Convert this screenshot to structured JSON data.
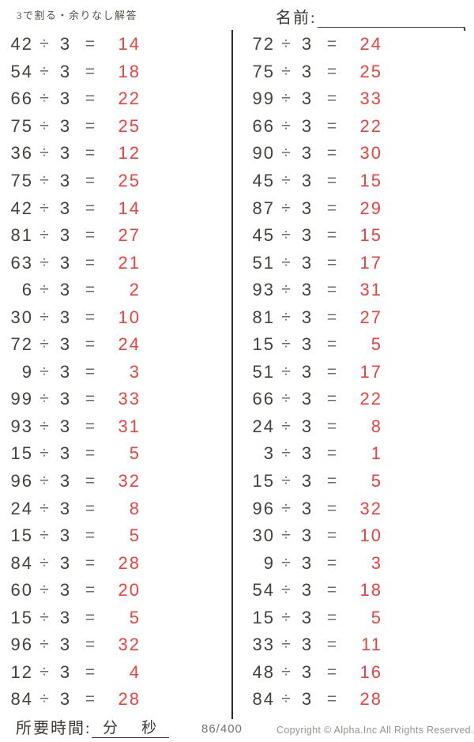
{
  "header": {
    "title": "3で割る・余りなし解答",
    "name_label": "名前:"
  },
  "op_symbol": "÷",
  "eq_symbol": "=",
  "divisor": "3",
  "problems": {
    "left": [
      {
        "dividend": "42",
        "answer": "14"
      },
      {
        "dividend": "54",
        "answer": "18"
      },
      {
        "dividend": "66",
        "answer": "22"
      },
      {
        "dividend": "75",
        "answer": "25"
      },
      {
        "dividend": "36",
        "answer": "12"
      },
      {
        "dividend": "75",
        "answer": "25"
      },
      {
        "dividend": "42",
        "answer": "14"
      },
      {
        "dividend": "81",
        "answer": "27"
      },
      {
        "dividend": "63",
        "answer": "21"
      },
      {
        "dividend": "6",
        "answer": "2"
      },
      {
        "dividend": "30",
        "answer": "10"
      },
      {
        "dividend": "72",
        "answer": "24"
      },
      {
        "dividend": "9",
        "answer": "3"
      },
      {
        "dividend": "99",
        "answer": "33"
      },
      {
        "dividend": "93",
        "answer": "31"
      },
      {
        "dividend": "15",
        "answer": "5"
      },
      {
        "dividend": "96",
        "answer": "32"
      },
      {
        "dividend": "24",
        "answer": "8"
      },
      {
        "dividend": "15",
        "answer": "5"
      },
      {
        "dividend": "84",
        "answer": "28"
      },
      {
        "dividend": "60",
        "answer": "20"
      },
      {
        "dividend": "15",
        "answer": "5"
      },
      {
        "dividend": "96",
        "answer": "32"
      },
      {
        "dividend": "12",
        "answer": "4"
      },
      {
        "dividend": "84",
        "answer": "28"
      }
    ],
    "right": [
      {
        "dividend": "72",
        "answer": "24"
      },
      {
        "dividend": "75",
        "answer": "25"
      },
      {
        "dividend": "99",
        "answer": "33"
      },
      {
        "dividend": "66",
        "answer": "22"
      },
      {
        "dividend": "90",
        "answer": "30"
      },
      {
        "dividend": "45",
        "answer": "15"
      },
      {
        "dividend": "87",
        "answer": "29"
      },
      {
        "dividend": "45",
        "answer": "15"
      },
      {
        "dividend": "51",
        "answer": "17"
      },
      {
        "dividend": "93",
        "answer": "31"
      },
      {
        "dividend": "81",
        "answer": "27"
      },
      {
        "dividend": "15",
        "answer": "5"
      },
      {
        "dividend": "51",
        "answer": "17"
      },
      {
        "dividend": "66",
        "answer": "22"
      },
      {
        "dividend": "24",
        "answer": "8"
      },
      {
        "dividend": "3",
        "answer": "1"
      },
      {
        "dividend": "15",
        "answer": "5"
      },
      {
        "dividend": "96",
        "answer": "32"
      },
      {
        "dividend": "30",
        "answer": "10"
      },
      {
        "dividend": "9",
        "answer": "3"
      },
      {
        "dividend": "54",
        "answer": "18"
      },
      {
        "dividend": "15",
        "answer": "5"
      },
      {
        "dividend": "33",
        "answer": "11"
      },
      {
        "dividend": "48",
        "answer": "16"
      },
      {
        "dividend": "84",
        "answer": "28"
      }
    ]
  },
  "footer": {
    "time_label": "所要時間:",
    "minutes_label": "分",
    "seconds_label": "秒",
    "page": "86/400",
    "copyright": "Copyright ©  Alpha.Inc All Rights Reserved."
  },
  "colors": {
    "problem": "#45413d",
    "answer": "#f0413c",
    "divider": "#2e2a26"
  }
}
